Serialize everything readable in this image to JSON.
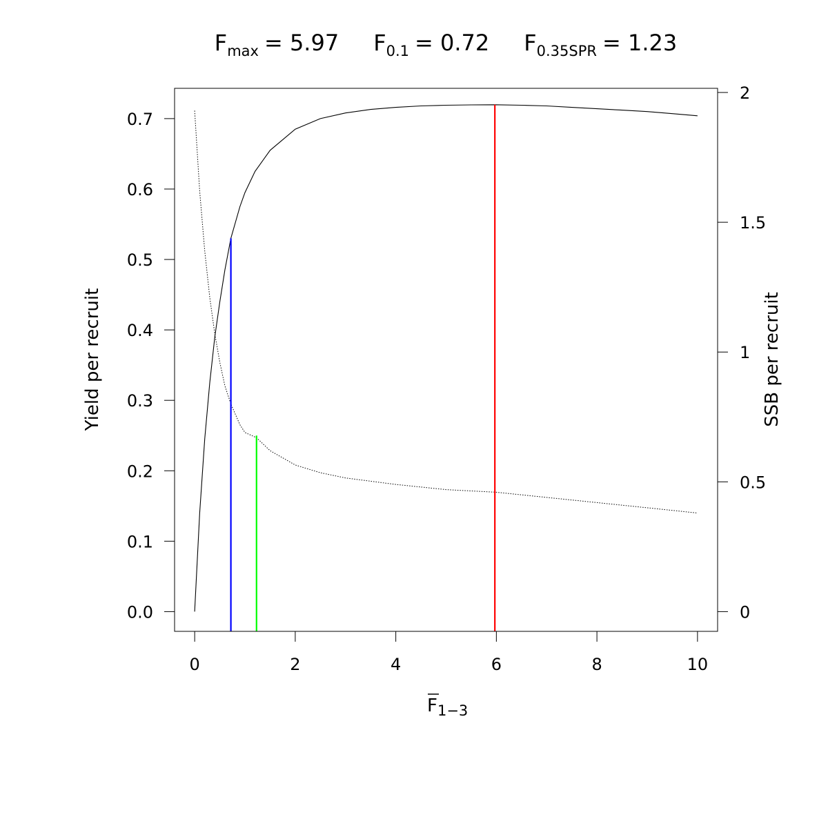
{
  "chart_data": {
    "type": "line",
    "title": {
      "fmax": {
        "main": "F",
        "sub": "max",
        "value_text": "= 5.97"
      },
      "f01": {
        "main": "F",
        "sub": "0.1",
        "value_text": "= 0.72"
      },
      "fspr": {
        "main": "F",
        "sub": "0.35SPR",
        "value_text": "= 1.23"
      }
    },
    "xlabel": {
      "main": "F",
      "sub": "1−3",
      "overline": true
    },
    "ylabel": "Yield per recruit",
    "y2label": "SSB per recruit",
    "xlim": [
      -0.4,
      10.4
    ],
    "ylim": [
      -0.028,
      0.743
    ],
    "y2lim": [
      -0.076,
      2.016
    ],
    "x_ticks": [
      0,
      2,
      4,
      6,
      8,
      10
    ],
    "x_tick_labels": [
      "0",
      "2",
      "4",
      "6",
      "8",
      "10"
    ],
    "y_ticks": [
      0.0,
      0.1,
      0.2,
      0.3,
      0.4,
      0.5,
      0.6,
      0.7
    ],
    "y_tick_labels": [
      "0.0",
      "0.1",
      "0.2",
      "0.3",
      "0.4",
      "0.5",
      "0.6",
      "0.7"
    ],
    "y2_ticks": [
      0,
      0.5,
      1,
      1.5,
      2
    ],
    "y2_tick_labels": [
      "0",
      "0.5",
      "1",
      "1.5",
      "2"
    ],
    "grid": false,
    "series": [
      {
        "axis": "left",
        "style": "solid",
        "color": "#000000",
        "x": [
          0,
          0.1,
          0.2,
          0.3,
          0.4,
          0.5,
          0.6,
          0.72,
          0.9,
          1.0,
          1.2,
          1.5,
          2.0,
          2.5,
          3.0,
          3.5,
          4.0,
          4.5,
          5.0,
          5.5,
          5.97,
          6.5,
          7.0,
          7.5,
          8.0,
          8.5,
          9.0,
          9.5,
          10.0
        ],
        "values": [
          0.0,
          0.14,
          0.245,
          0.325,
          0.39,
          0.44,
          0.485,
          0.53,
          0.575,
          0.595,
          0.625,
          0.655,
          0.685,
          0.7,
          0.708,
          0.713,
          0.716,
          0.718,
          0.719,
          0.7195,
          0.7197,
          0.719,
          0.718,
          0.716,
          0.714,
          0.712,
          0.71,
          0.707,
          0.704
        ]
      },
      {
        "axis": "right",
        "style": "dotted",
        "color": "#000000",
        "x": [
          0,
          0.1,
          0.2,
          0.3,
          0.4,
          0.5,
          0.6,
          0.72,
          0.9,
          1.0,
          1.23,
          1.5,
          2.0,
          2.5,
          3.0,
          4.0,
          5.0,
          6.0,
          7.0,
          8.0,
          9.0,
          10.0
        ],
        "values": [
          1.93,
          1.62,
          1.39,
          1.21,
          1.07,
          0.96,
          0.87,
          0.8,
          0.72,
          0.69,
          0.67,
          0.62,
          0.565,
          0.535,
          0.515,
          0.49,
          0.47,
          0.46,
          0.44,
          0.42,
          0.4,
          0.38
        ]
      }
    ],
    "reference_lines": [
      {
        "name": "fmax-line",
        "x": 5.97,
        "y_top": 0.7197,
        "color": "#ff0000"
      },
      {
        "name": "f01-line",
        "x": 0.72,
        "y_top": 0.53,
        "color": "#0000ff"
      },
      {
        "name": "fspr-line",
        "x": 1.23,
        "y_top": 0.25,
        "color": "#00ff00"
      }
    ]
  }
}
